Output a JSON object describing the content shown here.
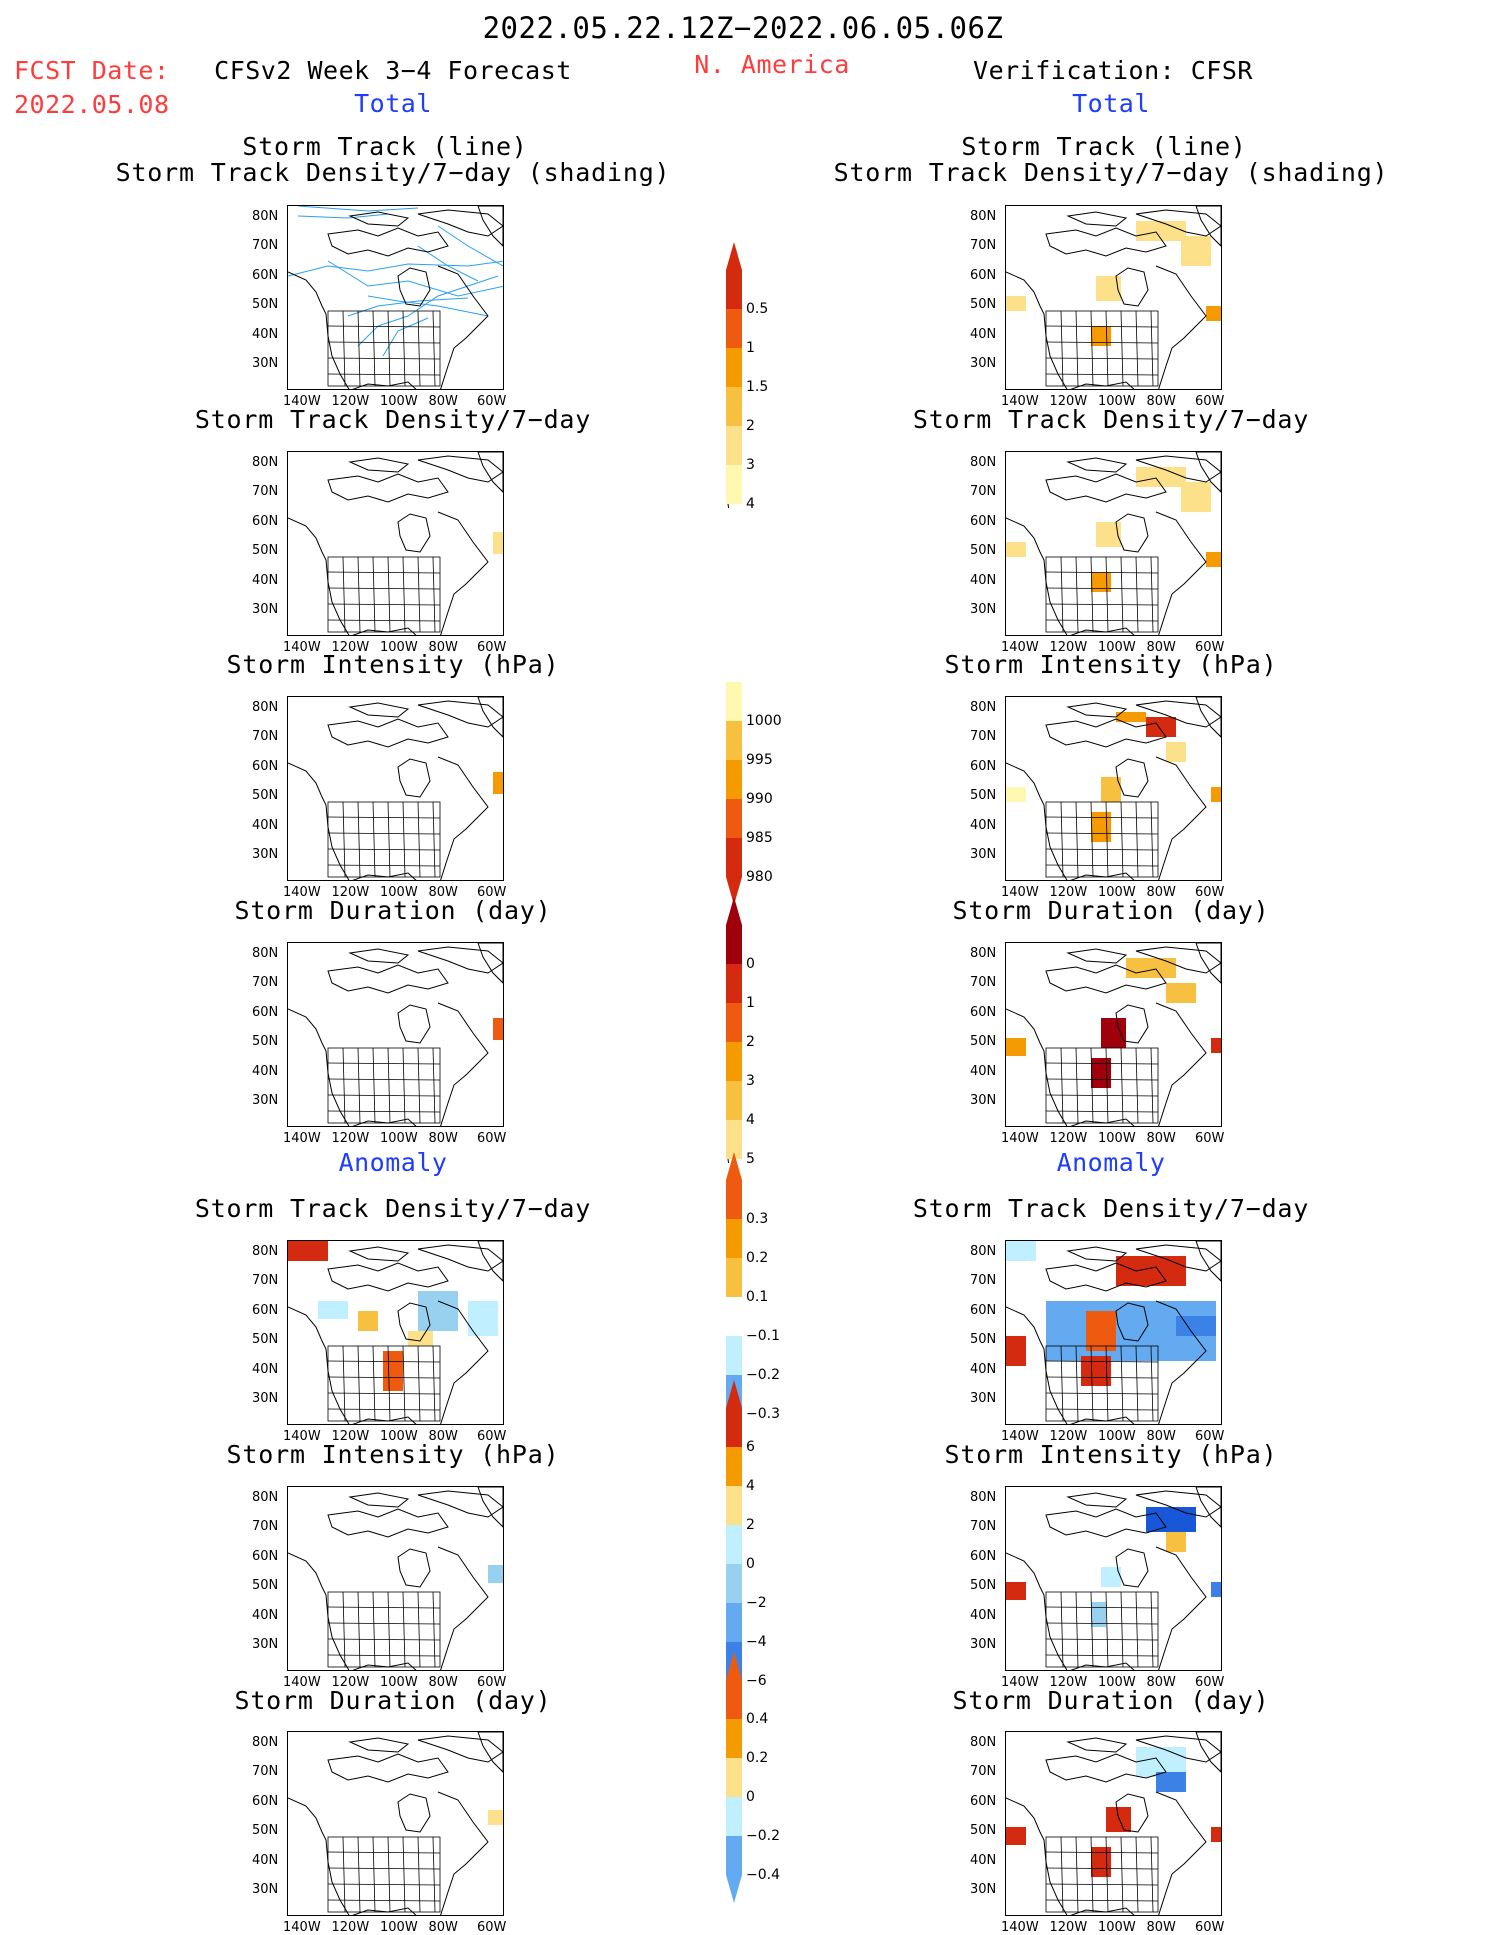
{
  "header": {
    "date_range": "2022.05.22.12Z−2022.06.05.06Z",
    "fcst_label": "FCST Date:",
    "fcst_date": "2022.05.08",
    "left_title": "CFSv2 Week 3−4 Forecast",
    "region": "N. America",
    "right_title": "Verification: CFSR",
    "total_left": "Total",
    "total_right": "Total",
    "anomaly_left": "Anomaly",
    "anomaly_right": "Anomaly"
  },
  "panel_titles": {
    "track_line": "Storm Track (line)",
    "track_shading": "Storm Track Density/7−day (shading)",
    "density": "Storm Track Density/7−day",
    "intensity": "Storm Intensity (hPa)",
    "duration": "Storm Duration (day)"
  },
  "axes": {
    "lat_labels": [
      "80N",
      "70N",
      "60N",
      "50N",
      "40N",
      "30N"
    ],
    "lon_labels": [
      "140W",
      "120W",
      "100W",
      "80W",
      "60W"
    ]
  },
  "colorbars": {
    "density_total": [
      "0.5",
      "1",
      "1.5",
      "2",
      "3",
      "4"
    ],
    "intensity_total": [
      "1000",
      "995",
      "990",
      "985",
      "980"
    ],
    "duration_total": [
      "0",
      "1",
      "2",
      "3",
      "4",
      "5"
    ],
    "density_anom": [
      "0.3",
      "0.2",
      "0.1",
      "−0.1",
      "−0.2",
      "−0.3"
    ],
    "intensity_anom": [
      "6",
      "4",
      "2",
      "0",
      "−2",
      "−4",
      "−6"
    ],
    "duration_anom": [
      "0.4",
      "0.2",
      "0",
      "−0.2",
      "−0.4"
    ]
  },
  "colors": {
    "warm": [
      "#fff8b0",
      "#fde08a",
      "#f8c040",
      "#f59a00",
      "#ee5a10",
      "#d42a10",
      "#a0000c"
    ],
    "cool": [
      "#c0f0ff",
      "#98d0f0",
      "#64aaf0",
      "#3c82e6",
      "#1858d8"
    ],
    "track": "#2aa0f0"
  }
}
